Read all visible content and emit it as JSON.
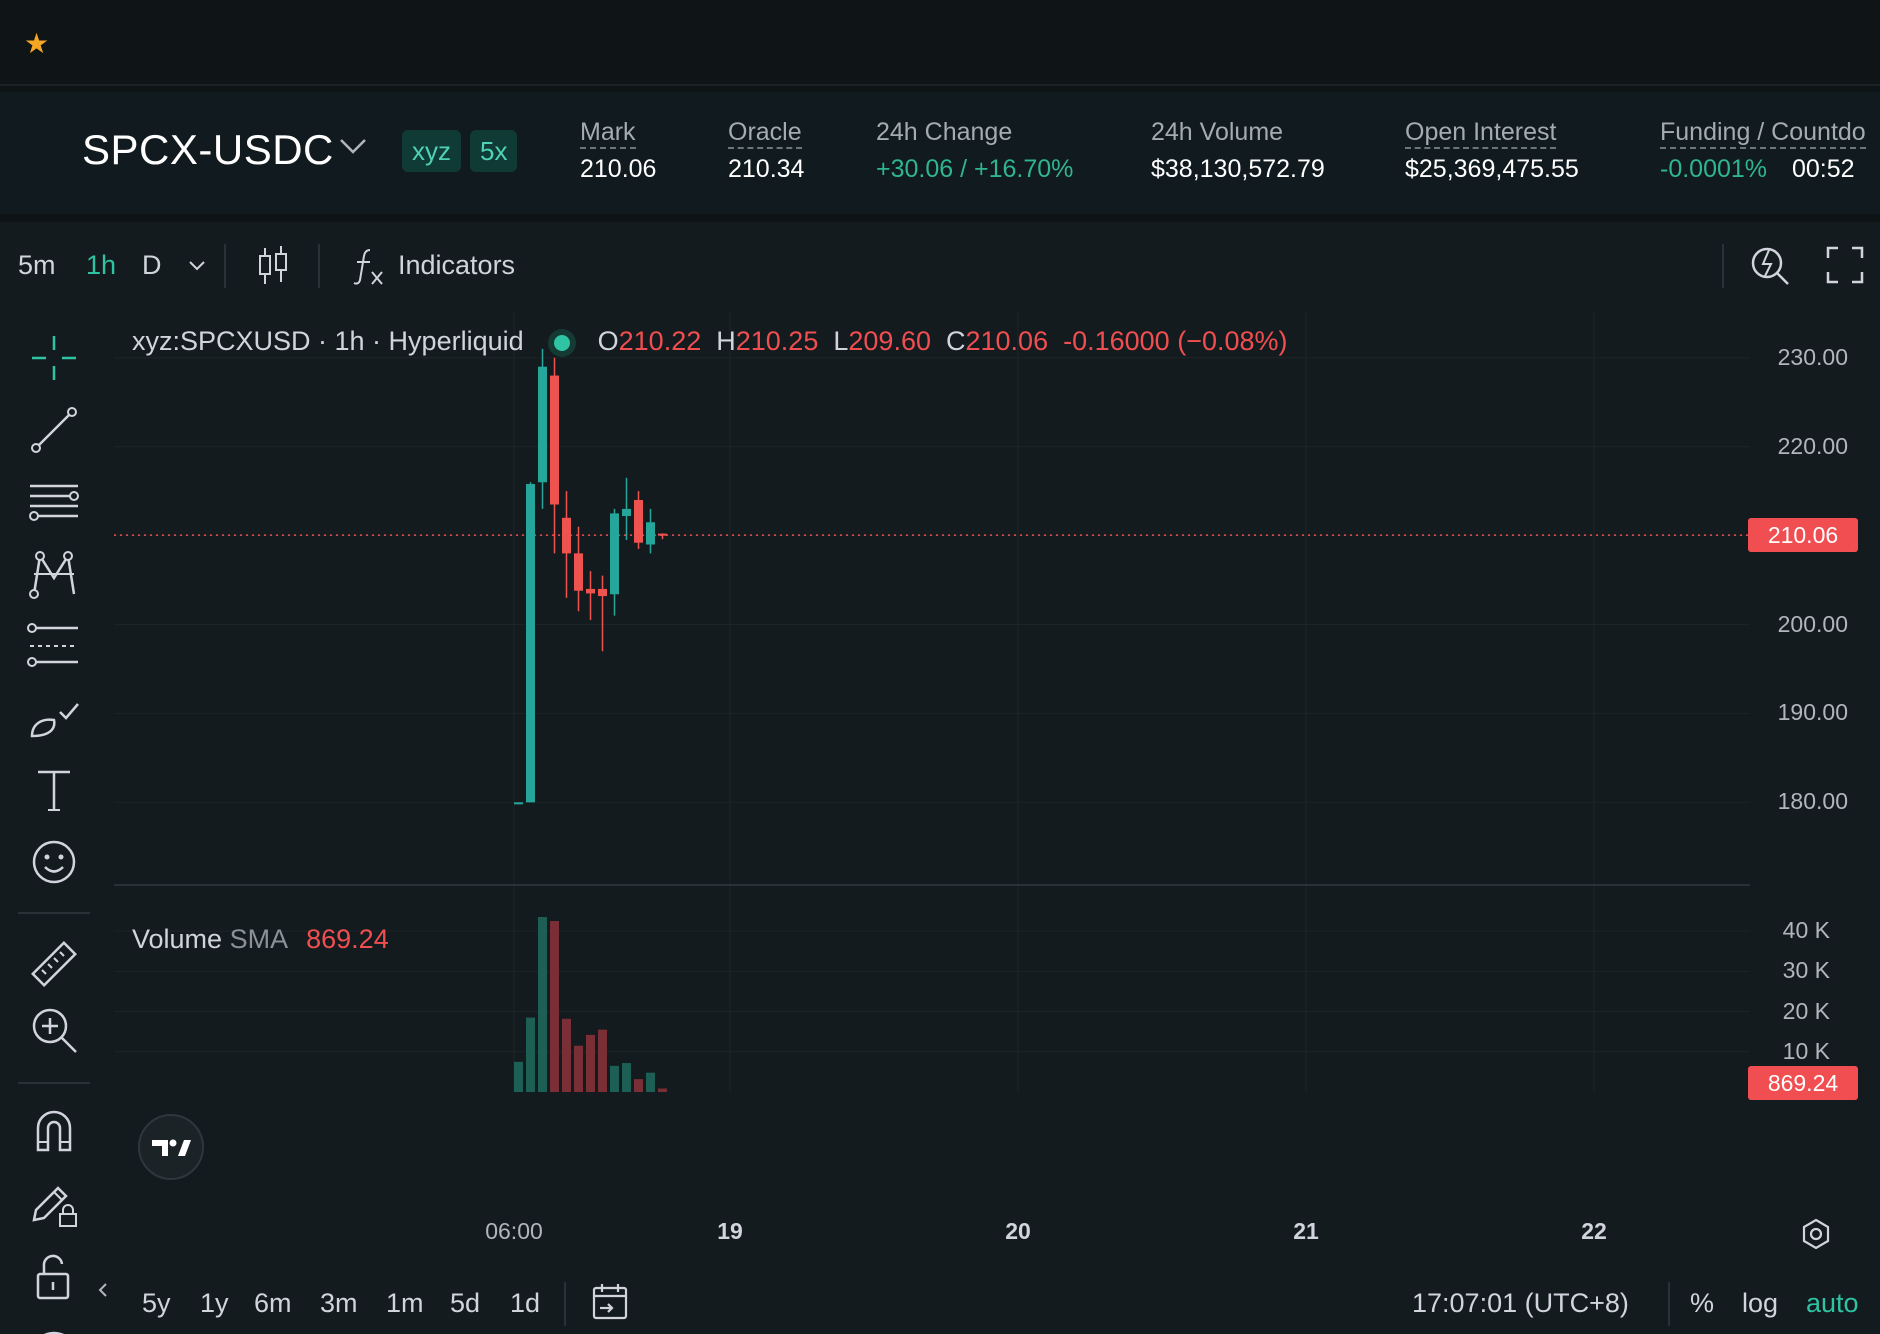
{
  "topbar": {
    "star_icon": "star-icon"
  },
  "header": {
    "pair": "SPCX-USDC",
    "badges": [
      "xyz",
      "5x"
    ],
    "stats": [
      {
        "label": "Mark",
        "value": "210.06"
      },
      {
        "label": "Oracle",
        "value": "210.34"
      },
      {
        "label": "24h Change",
        "value": "+30.06 / +16.70%"
      },
      {
        "label": "24h Volume",
        "value": "$38,130,572.79"
      },
      {
        "label": "Open Interest",
        "value": "$25,369,475.55"
      },
      {
        "label": "Funding / Countdo",
        "value": "-0.0001%",
        "value2": "00:52"
      }
    ],
    "colors": {
      "positive": "#2fb58f",
      "negative": "#f04e50",
      "accent": "#2ec4a3"
    }
  },
  "toolbar": {
    "timeframes": [
      "5m",
      "1h",
      "D"
    ],
    "active_timeframe": "1h",
    "indicators_label": "Indicators"
  },
  "legend": {
    "symbol": "xyz:SPCXUSD · 1h · Hyperliquid",
    "o_key": "O",
    "o": "210.22",
    "h_key": "H",
    "h": "210.25",
    "l_key": "L",
    "l": "209.60",
    "c_key": "C",
    "c": "210.06",
    "change": "-0.16000 (−0.08%)"
  },
  "volume_legend": {
    "label": "Volume",
    "sma_label": "SMA",
    "sma_value": "869.24"
  },
  "chart_data": {
    "type": "candlestick",
    "price_axis": {
      "ticks": [
        "230.00",
        "220.00",
        "210.00",
        "200.00",
        "190.00",
        "180.00"
      ],
      "range": [
        177,
        232
      ]
    },
    "last_price_label": "210.06",
    "last_price": 210.06,
    "volume_axis": {
      "ticks": [
        "40 K",
        "30 K",
        "20 K",
        "10 K"
      ],
      "range": [
        0,
        44000
      ]
    },
    "volume_last_label": "869.24",
    "volume_last": 869.24,
    "x_ticks": [
      "06:00",
      "19",
      "20",
      "21",
      "22"
    ],
    "candles": [
      {
        "o": 179.9,
        "h": 180.0,
        "l": 179.8,
        "c": 180.0,
        "v": 7500
      },
      {
        "o": 180.0,
        "h": 216.0,
        "l": 180.0,
        "c": 215.8,
        "v": 18500
      },
      {
        "o": 216.0,
        "h": 231.0,
        "l": 213.0,
        "c": 229.0,
        "v": 43500
      },
      {
        "o": 228.0,
        "h": 230.0,
        "l": 208.0,
        "c": 213.5,
        "v": 42500
      },
      {
        "o": 212.0,
        "h": 215.0,
        "l": 203.0,
        "c": 208.0,
        "v": 18200
      },
      {
        "o": 208.0,
        "h": 211.0,
        "l": 201.5,
        "c": 203.8,
        "v": 11500
      },
      {
        "o": 204.0,
        "h": 206.0,
        "l": 200.5,
        "c": 203.5,
        "v": 14200
      },
      {
        "o": 204.0,
        "h": 205.5,
        "l": 197.0,
        "c": 203.2,
        "v": 15500
      },
      {
        "o": 203.4,
        "h": 213.0,
        "l": 201.0,
        "c": 212.5,
        "v": 6500
      },
      {
        "o": 212.2,
        "h": 216.5,
        "l": 209.5,
        "c": 213.0,
        "v": 7200
      },
      {
        "o": 214.0,
        "h": 215.0,
        "l": 208.5,
        "c": 209.2,
        "v": 3200
      },
      {
        "o": 209.0,
        "h": 213.0,
        "l": 208.0,
        "c": 211.5,
        "v": 4800
      },
      {
        "o": 210.22,
        "h": 210.25,
        "l": 209.6,
        "c": 210.06,
        "v": 869.24
      }
    ]
  },
  "bottombar": {
    "ranges": [
      "5y",
      "1y",
      "6m",
      "3m",
      "1m",
      "5d",
      "1d"
    ],
    "clock": "17:07:01 (UTC+8)",
    "options": [
      "%",
      "log",
      "auto"
    ],
    "active_option": "auto"
  }
}
